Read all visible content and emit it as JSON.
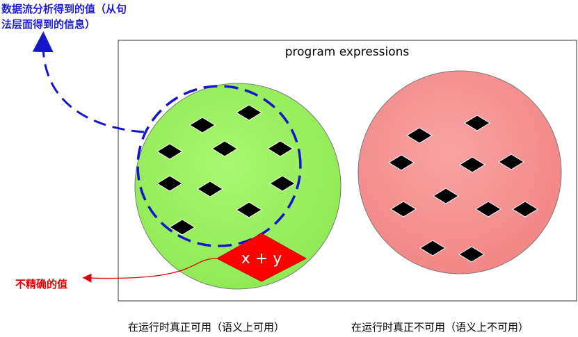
{
  "diagram": {
    "box_label": "program expressions",
    "expr_label": "x + y",
    "dataflow_caption_line1": "数据流分析得到的值（从句",
    "dataflow_caption_line2": "法层面得到的信息）",
    "imprecise_caption": "不精确的值",
    "left_caption": "在运行时真正可用（语义上可用）",
    "right_caption": "在运行时真正不可用（语义上不可用）"
  },
  "colors": {
    "left_set": "#9af25f",
    "right_set": "#f59595",
    "dataflow_outline": "#1515cc",
    "imprecise": "#ff0000",
    "element": "#000000"
  },
  "icons": {
    "element": "black-diamond-icon"
  }
}
